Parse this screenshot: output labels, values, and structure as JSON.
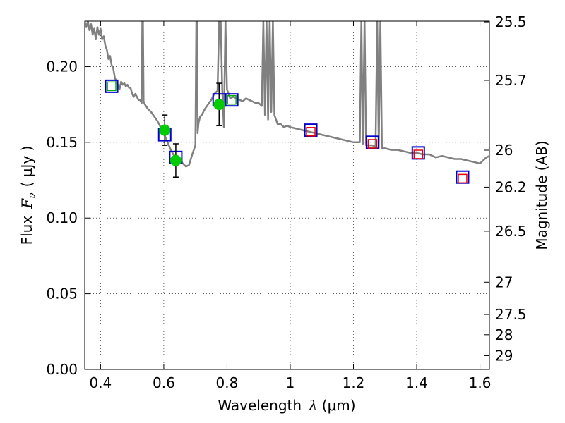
{
  "chart_data": {
    "type": "scatter",
    "xlabel": "Wavelength",
    "xlabel_symbol": "λ",
    "xlabel_unit": "(μm)",
    "ylabel": "Flux",
    "ylabel_symbol": "F",
    "ylabel_subscript": "ν",
    "ylabel_unit": "( μJy )",
    "y2label": "Magnitude (AB)",
    "xlim": [
      0.35,
      1.63
    ],
    "ylim": [
      0.0,
      0.23
    ],
    "grid": true,
    "x_ticks": [
      {
        "value": 0.4,
        "label": "0.4"
      },
      {
        "value": 0.6,
        "label": "0.6"
      },
      {
        "value": 0.8,
        "label": "0.8"
      },
      {
        "value": 1.0,
        "label": "1"
      },
      {
        "value": 1.2,
        "label": "1.2"
      },
      {
        "value": 1.4,
        "label": "1.4"
      },
      {
        "value": 1.6,
        "label": "1.6"
      }
    ],
    "y_ticks": [
      {
        "value": 0.0,
        "label": "0.00"
      },
      {
        "value": 0.05,
        "label": "0.05"
      },
      {
        "value": 0.1,
        "label": "0.10"
      },
      {
        "value": 0.15,
        "label": "0.15"
      },
      {
        "value": 0.2,
        "label": "0.20"
      }
    ],
    "y2_ticks": [
      {
        "label": "25.5",
        "flux": 0.2295
      },
      {
        "label": "25.7",
        "flux": 0.1909
      },
      {
        "label": "26",
        "flux": 0.1448
      },
      {
        "label": "26.2",
        "flux": 0.1204
      },
      {
        "label": "26.5",
        "flux": 0.0913
      },
      {
        "label": "27",
        "flux": 0.0576
      },
      {
        "label": "27.5",
        "flux": 0.0363
      },
      {
        "label": "28",
        "flux": 0.0229
      },
      {
        "label": "29",
        "flux": 0.0091
      }
    ],
    "model_spectrum": {
      "color": "#808080",
      "x": [
        0.35,
        0.355,
        0.36,
        0.365,
        0.37,
        0.375,
        0.38,
        0.385,
        0.39,
        0.395,
        0.4,
        0.405,
        0.41,
        0.415,
        0.42,
        0.425,
        0.43,
        0.435,
        0.44,
        0.445,
        0.45,
        0.455,
        0.46,
        0.465,
        0.47,
        0.475,
        0.48,
        0.485,
        0.49,
        0.495,
        0.5,
        0.505,
        0.51,
        0.515,
        0.52,
        0.525,
        0.53,
        0.532,
        0.534,
        0.536,
        0.54,
        0.55,
        0.56,
        0.57,
        0.58,
        0.59,
        0.6,
        0.61,
        0.62,
        0.63,
        0.64,
        0.65,
        0.66,
        0.67,
        0.68,
        0.69,
        0.7,
        0.703,
        0.705,
        0.707,
        0.71,
        0.715,
        0.72,
        0.73,
        0.74,
        0.75,
        0.76,
        0.77,
        0.775,
        0.78,
        0.785,
        0.79,
        0.795,
        0.8,
        0.81,
        0.82,
        0.83,
        0.84,
        0.85,
        0.86,
        0.87,
        0.88,
        0.89,
        0.9,
        0.91,
        0.915,
        0.92,
        0.925,
        0.93,
        0.935,
        0.94,
        0.945,
        0.95,
        0.96,
        0.97,
        0.98,
        0.99,
        1.0,
        1.02,
        1.04,
        1.06,
        1.08,
        1.1,
        1.12,
        1.14,
        1.16,
        1.18,
        1.2,
        1.22,
        1.225,
        1.23,
        1.235,
        1.24,
        1.26,
        1.27,
        1.275,
        1.28,
        1.285,
        1.29,
        1.3,
        1.32,
        1.34,
        1.36,
        1.38,
        1.4,
        1.42,
        1.44,
        1.46,
        1.48,
        1.5,
        1.52,
        1.54,
        1.56,
        1.58,
        1.6,
        1.62,
        1.63
      ],
      "y": [
        0.23,
        0.226,
        0.23,
        0.224,
        0.228,
        0.221,
        0.225,
        0.218,
        0.226,
        0.221,
        0.225,
        0.218,
        0.22,
        0.214,
        0.211,
        0.205,
        0.207,
        0.201,
        0.199,
        0.193,
        0.19,
        0.188,
        0.185,
        0.19,
        0.188,
        0.189,
        0.187,
        0.188,
        0.186,
        0.186,
        0.182,
        0.18,
        0.182,
        0.18,
        0.178,
        0.178,
        0.176,
        0.23,
        0.23,
        0.177,
        0.175,
        0.172,
        0.17,
        0.167,
        0.164,
        0.16,
        0.156,
        0.151,
        0.146,
        0.142,
        0.14,
        0.139,
        0.136,
        0.134,
        0.135,
        0.142,
        0.148,
        0.23,
        0.23,
        0.156,
        0.163,
        0.167,
        0.168,
        0.172,
        0.175,
        0.178,
        0.182,
        0.184,
        0.23,
        0.23,
        0.185,
        0.16,
        0.23,
        0.185,
        0.179,
        0.18,
        0.179,
        0.178,
        0.177,
        0.179,
        0.178,
        0.177,
        0.176,
        0.176,
        0.174,
        0.23,
        0.168,
        0.23,
        0.165,
        0.23,
        0.17,
        0.23,
        0.168,
        0.162,
        0.162,
        0.16,
        0.161,
        0.16,
        0.159,
        0.158,
        0.157,
        0.156,
        0.155,
        0.154,
        0.153,
        0.152,
        0.151,
        0.15,
        0.15,
        0.23,
        0.149,
        0.23,
        0.148,
        0.148,
        0.147,
        0.23,
        0.146,
        0.23,
        0.146,
        0.146,
        0.145,
        0.145,
        0.144,
        0.143,
        0.143,
        0.142,
        0.142,
        0.14,
        0.141,
        0.14,
        0.139,
        0.139,
        0.138,
        0.137,
        0.136,
        0.14,
        0.141
      ]
    },
    "observed_points": {
      "color": "#00cc00",
      "points": [
        {
          "x": 0.603,
          "y": 0.158,
          "yerr": 0.01
        },
        {
          "x": 0.638,
          "y": 0.138,
          "yerr": 0.011
        },
        {
          "x": 0.775,
          "y": 0.175,
          "yerr": 0.014
        }
      ]
    },
    "model_boxes": {
      "color": "#0000cc",
      "points": [
        {
          "x": 0.435,
          "y": 0.187
        },
        {
          "x": 0.603,
          "y": 0.155
        },
        {
          "x": 0.638,
          "y": 0.14
        },
        {
          "x": 0.775,
          "y": 0.178
        },
        {
          "x": 0.815,
          "y": 0.178
        },
        {
          "x": 1.065,
          "y": 0.158
        },
        {
          "x": 1.26,
          "y": 0.15
        },
        {
          "x": 1.405,
          "y": 0.143
        },
        {
          "x": 1.545,
          "y": 0.127
        }
      ]
    },
    "green_boxes": {
      "color": "#00aa00",
      "points": [
        {
          "x": 0.435,
          "y": 0.187
        },
        {
          "x": 0.815,
          "y": 0.178
        }
      ]
    },
    "red_boxes": {
      "color": "#ee0000",
      "points": [
        {
          "x": 1.065,
          "y": 0.157
        },
        {
          "x": 1.26,
          "y": 0.149
        },
        {
          "x": 1.405,
          "y": 0.142
        },
        {
          "x": 1.545,
          "y": 0.126
        }
      ]
    }
  }
}
